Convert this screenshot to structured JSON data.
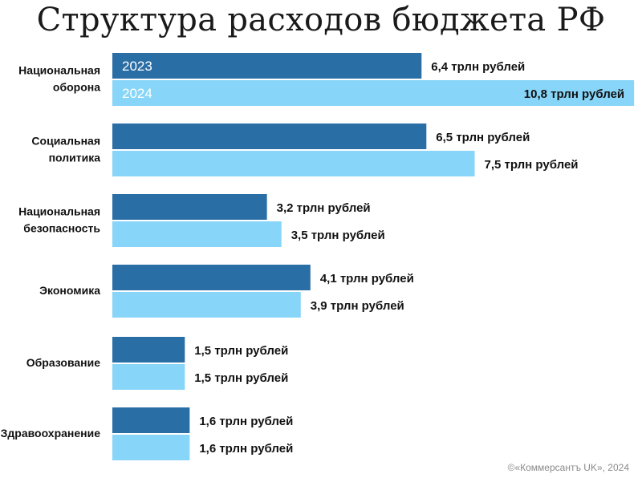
{
  "title": "Структура расходов бюджета РФ",
  "credit": "©«Коммерсантъ UK», 2024",
  "colors": {
    "series_2023": "#2a6ea6",
    "series_2024": "#87d5f8",
    "year_label_2023": "#ffffff",
    "year_label_2024": "#ffffff"
  },
  "chart_data": {
    "type": "bar",
    "orientation": "horizontal",
    "title": "Структура расходов бюджета РФ",
    "unit": "трлн рублей",
    "categories": [
      [
        "Национальная",
        "оборона"
      ],
      [
        "Социальная",
        "политика"
      ],
      [
        "Национальная",
        "безопасность"
      ],
      [
        "Экономика"
      ],
      [
        "Образование"
      ],
      [
        "Здравоохранение"
      ]
    ],
    "series": [
      {
        "name": "2023",
        "values": [
          6.4,
          6.5,
          3.2,
          4.1,
          1.5,
          1.6
        ],
        "labels": [
          "6,4 трлн рублей",
          "6,5 трлн рублей",
          "3,2 трлн рублей",
          "4,1 трлн рублей",
          "1,5 трлн рублей",
          "1,6 трлн рублей"
        ]
      },
      {
        "name": "2024",
        "values": [
          10.8,
          7.5,
          3.5,
          3.9,
          1.5,
          1.6
        ],
        "labels": [
          "10,8 трлн рублей",
          "7,5 трлн рублей",
          "3,5 трлн рублей",
          "3,9 трлн рублей",
          "1,5 трлн рублей",
          "1,6 трлн рублей"
        ]
      }
    ],
    "legend": "inside-first-bars"
  }
}
